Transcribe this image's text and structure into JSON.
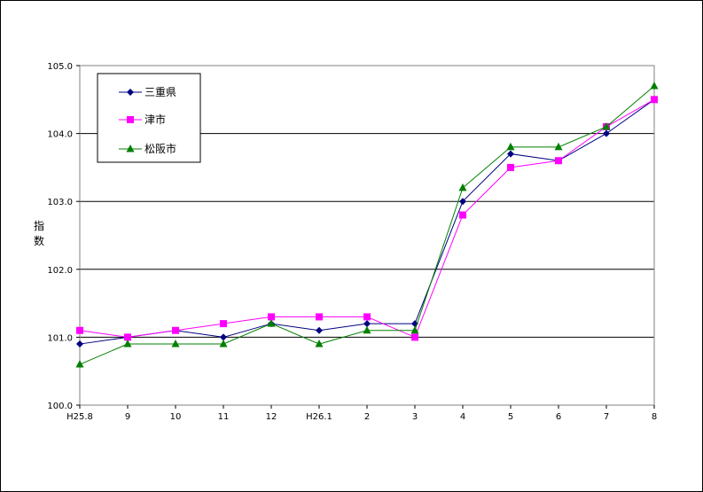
{
  "chart_data": {
    "type": "line",
    "title": "",
    "xlabel": "",
    "ylabel_chars": [
      "指",
      "数"
    ],
    "categories": [
      "H25.8",
      "9",
      "10",
      "11",
      "12",
      "H26.1",
      "2",
      "3",
      "4",
      "5",
      "6",
      "7",
      "8"
    ],
    "ylim": [
      100.0,
      105.0
    ],
    "yticks": [
      "100.0",
      "101.0",
      "102.0",
      "103.0",
      "104.0",
      "105.0"
    ],
    "grid": true,
    "legend_position": "top-left",
    "series": [
      {
        "name": "三重県",
        "color": "#000080",
        "marker": "diamond",
        "values": [
          100.9,
          101.0,
          101.1,
          101.0,
          101.2,
          101.1,
          101.2,
          101.2,
          103.0,
          103.7,
          103.6,
          104.0,
          104.5
        ]
      },
      {
        "name": "津市",
        "color": "#FF00FF",
        "marker": "square",
        "values": [
          101.1,
          101.0,
          101.1,
          101.2,
          101.3,
          101.3,
          101.3,
          101.0,
          102.8,
          103.5,
          103.6,
          104.1,
          104.5
        ]
      },
      {
        "name": "松阪市",
        "color": "#008000",
        "marker": "triangle",
        "values": [
          100.6,
          100.9,
          100.9,
          100.9,
          101.2,
          100.9,
          101.1,
          101.1,
          103.2,
          103.8,
          103.8,
          104.1,
          104.7
        ]
      }
    ]
  }
}
